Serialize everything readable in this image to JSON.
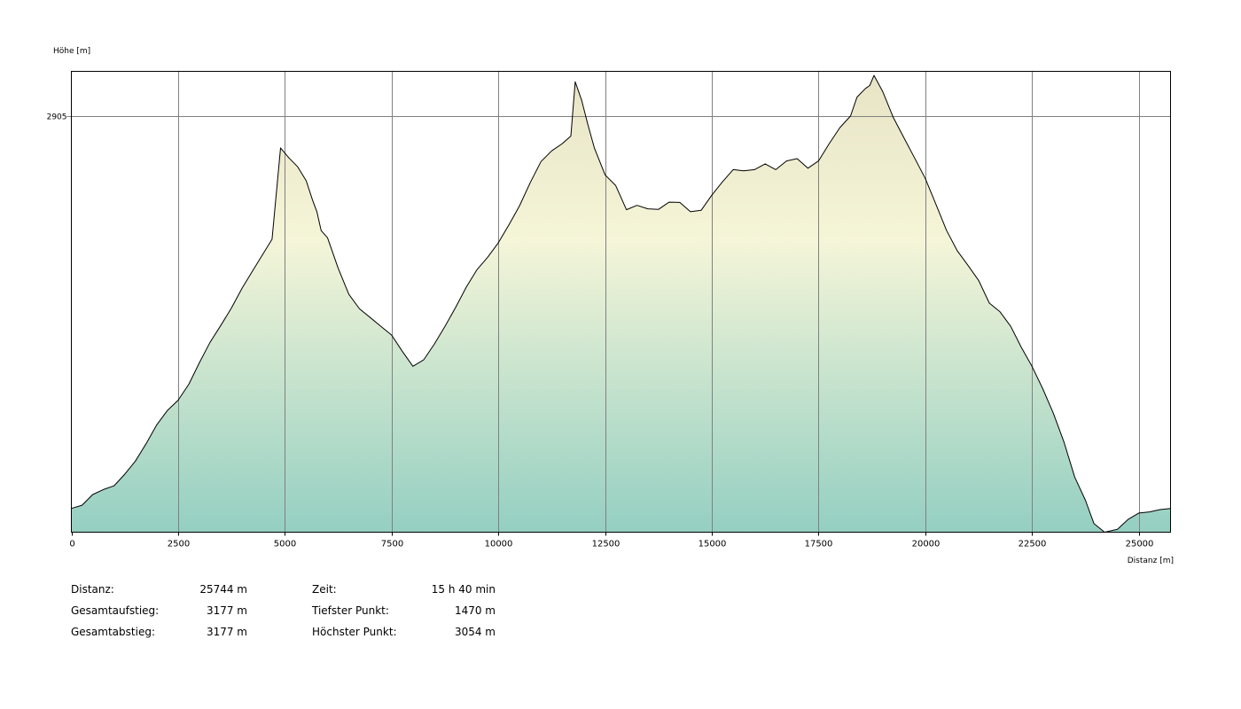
{
  "chart_data": {
    "type": "area",
    "xlabel": "Distanz [m]",
    "ylabel": "Höhe [m]",
    "xlim": [
      0,
      25744
    ],
    "ylim": [
      1470,
      3054
    ],
    "x_ticks": [
      0,
      2500,
      5000,
      7500,
      10000,
      12500,
      15000,
      17500,
      20000,
      22500,
      25000
    ],
    "x_tick_labels": [
      "0",
      "2500",
      "5000",
      "7500",
      "10000",
      "12500",
      "15000",
      "17500",
      "20000",
      "22500",
      "25000"
    ],
    "y_ticks": [
      2905
    ],
    "y_tick_labels": [
      "2905"
    ],
    "grid": true,
    "colors": {
      "fill_top": "#e8e4c6",
      "fill_mid": "#f5f5d8",
      "fill_bottom": "#94cfc2",
      "line": "#000000",
      "grid": "#808080"
    },
    "series": [
      {
        "x": [
          0,
          250,
          500,
          750,
          1000,
          1250,
          1500,
          1750,
          2000,
          2250,
          2500,
          2750,
          3000,
          3250,
          3500,
          3750,
          4000,
          4250,
          4500,
          4700,
          4900,
          5100,
          5300,
          5500,
          5650,
          5750,
          5850,
          6000,
          6250,
          6500,
          6750,
          7000,
          7250,
          7500,
          7750,
          8000,
          8250,
          8500,
          8750,
          9000,
          9250,
          9500,
          9750,
          10000,
          10250,
          10500,
          10750,
          11000,
          11250,
          11500,
          11700,
          11800,
          11950,
          12100,
          12250,
          12500,
          12750,
          13000,
          13250,
          13500,
          13750,
          14000,
          14250,
          14500,
          14750,
          15000,
          15250,
          15500,
          15750,
          16000,
          16250,
          16500,
          16750,
          17000,
          17250,
          17500,
          17750,
          18000,
          18250,
          18400,
          18600,
          18700,
          18800,
          19000,
          19250,
          19500,
          19750,
          20000,
          20250,
          20500,
          20750,
          21000,
          21250,
          21500,
          21750,
          22000,
          22250,
          22500,
          22750,
          23000,
          23250,
          23500,
          23750,
          23950,
          24200,
          24500,
          24750,
          25000,
          25250,
          25500,
          25744
        ],
        "y": [
          1552,
          1563,
          1600,
          1617,
          1630,
          1670,
          1715,
          1775,
          1840,
          1890,
          1925,
          1980,
          2055,
          2125,
          2183,
          2243,
          2312,
          2372,
          2432,
          2480,
          2795,
          2760,
          2730,
          2682,
          2615,
          2575,
          2510,
          2485,
          2380,
          2290,
          2240,
          2210,
          2180,
          2150,
          2094,
          2042,
          2064,
          2118,
          2180,
          2245,
          2315,
          2375,
          2418,
          2468,
          2530,
          2596,
          2676,
          2748,
          2785,
          2810,
          2836,
          3023,
          2960,
          2874,
          2795,
          2702,
          2665,
          2582,
          2597,
          2585,
          2583,
          2608,
          2607,
          2575,
          2580,
          2632,
          2678,
          2720,
          2716,
          2720,
          2740,
          2720,
          2750,
          2758,
          2725,
          2750,
          2810,
          2865,
          2905,
          2970,
          3000,
          3010,
          3045,
          2990,
          2900,
          2830,
          2760,
          2690,
          2600,
          2510,
          2440,
          2390,
          2338,
          2260,
          2230,
          2180,
          2107,
          2042,
          1965,
          1880,
          1780,
          1660,
          1580,
          1500,
          1470,
          1480,
          1514,
          1536,
          1540,
          1548,
          1552
        ]
      }
    ]
  },
  "stats": {
    "col1": [
      {
        "label": "Distanz:",
        "value": "25744 m"
      },
      {
        "label": "Gesamtaufstieg:",
        "value": "3177 m"
      },
      {
        "label": "Gesamtabstieg:",
        "value": "3177 m"
      }
    ],
    "col2": [
      {
        "label": "Zeit:",
        "value": "15 h 40 min"
      },
      {
        "label": "Tiefster Punkt:",
        "value": "1470 m"
      },
      {
        "label": "Höchster Punkt:",
        "value": "3054 m"
      }
    ]
  }
}
